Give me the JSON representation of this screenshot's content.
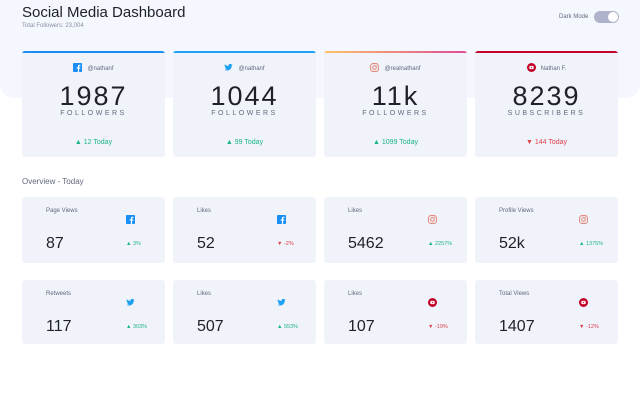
{
  "header": {
    "title": "Social Media Dashboard",
    "total_followers": "Total Followers: 23,004",
    "dark_mode_label": "Dark Mode",
    "dark_mode_on": false
  },
  "colors": {
    "facebook": "#198ff5",
    "twitter": "#1ca0f2",
    "instagram": "#df7a6a",
    "youtube": "#c4032a",
    "up": "#1db489",
    "down": "#dc414c"
  },
  "cards": [
    {
      "platform": "facebook",
      "icon": "facebook-icon",
      "handle": "@nathanf",
      "count": "1987",
      "unit": "FOLLOWERS",
      "today": "▲ 12 Today",
      "trend": "up"
    },
    {
      "platform": "twitter",
      "icon": "twitter-icon",
      "handle": "@nathanf",
      "count": "1044",
      "unit": "FOLLOWERS",
      "today": "▲ 99 Today",
      "trend": "up"
    },
    {
      "platform": "instagram",
      "icon": "instagram-icon",
      "handle": "@realnathanf",
      "count": "11k",
      "unit": "FOLLOWERS",
      "today": "▲ 1099 Today",
      "trend": "up"
    },
    {
      "platform": "youtube",
      "icon": "youtube-icon",
      "handle": "Nathan F.",
      "count": "8239",
      "unit": "SUBSCRIBERS",
      "today": "▼ 144 Today",
      "trend": "down"
    }
  ],
  "overview": {
    "title": "Overview - Today",
    "items": [
      {
        "platform": "facebook",
        "label": "Page Views",
        "value": "87",
        "change": "▲ 3%",
        "trend": "up"
      },
      {
        "platform": "facebook",
        "label": "Likes",
        "value": "52",
        "change": "▼ -2%",
        "trend": "down"
      },
      {
        "platform": "instagram",
        "label": "Likes",
        "value": "5462",
        "change": "▲ 2257%",
        "trend": "up"
      },
      {
        "platform": "instagram",
        "label": "Profile Views",
        "value": "52k",
        "change": "▲ 1375%",
        "trend": "up"
      },
      {
        "platform": "twitter",
        "label": "Retweets",
        "value": "117",
        "change": "▲ 303%",
        "trend": "up"
      },
      {
        "platform": "twitter",
        "label": "Likes",
        "value": "507",
        "change": "▲ 553%",
        "trend": "up"
      },
      {
        "platform": "youtube",
        "label": "Likes",
        "value": "107",
        "change": "▼ -19%",
        "trend": "down"
      },
      {
        "platform": "youtube",
        "label": "Total Views",
        "value": "1407",
        "change": "▼ -12%",
        "trend": "down"
      }
    ]
  }
}
